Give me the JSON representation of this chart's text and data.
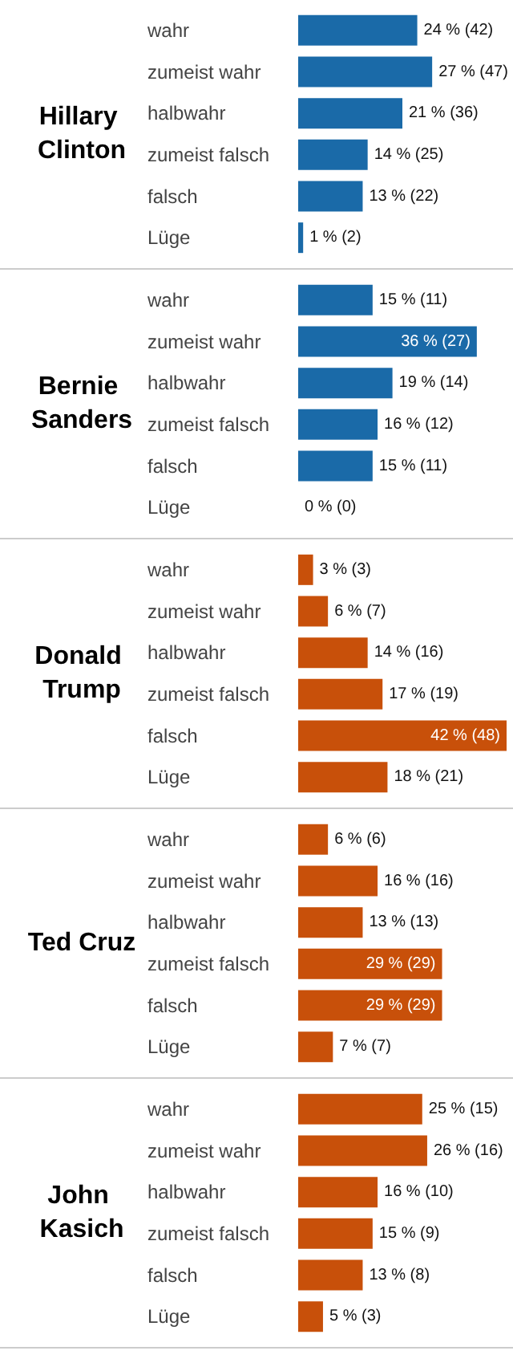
{
  "chart_data": [
    {
      "type": "bar",
      "orientation": "horizontal",
      "title": "Hillary Clinton",
      "categories": [
        "wahr",
        "zumeist wahr",
        "halbwahr",
        "zumeist falsch",
        "falsch",
        "Lüge"
      ],
      "values": [
        24,
        27,
        21,
        14,
        13,
        1
      ],
      "value_labels": [
        "24 % (42)",
        "27 % (47)",
        "21 % (36)",
        "14 % (25)",
        "13 % (22)",
        "1 % (2)"
      ],
      "color": "#1a6aa8"
    },
    {
      "type": "bar",
      "orientation": "horizontal",
      "title": "Bernie Sanders",
      "categories": [
        "wahr",
        "zumeist wahr",
        "halbwahr",
        "zumeist falsch",
        "falsch",
        "Lüge"
      ],
      "values": [
        15,
        36,
        19,
        16,
        15,
        0
      ],
      "value_labels": [
        "15 % (11)",
        "36 % (27)",
        "19 % (14)",
        "16 % (12)",
        "15 % (11)",
        "0 % (0)"
      ],
      "color": "#1a6aa8"
    },
    {
      "type": "bar",
      "orientation": "horizontal",
      "title": "Donald Trump",
      "categories": [
        "wahr",
        "zumeist wahr",
        "halbwahr",
        "zumeist falsch",
        "falsch",
        "Lüge"
      ],
      "values": [
        3,
        6,
        14,
        17,
        42,
        18
      ],
      "value_labels": [
        "3 % (3)",
        "6 % (7)",
        "14 % (16)",
        "17 % (19)",
        "42 % (48)",
        "18 % (21)"
      ],
      "color": "#c8500a"
    },
    {
      "type": "bar",
      "orientation": "horizontal",
      "title": "Ted Cruz",
      "categories": [
        "wahr",
        "zumeist wahr",
        "halbwahr",
        "zumeist falsch",
        "falsch",
        "Lüge"
      ],
      "values": [
        6,
        16,
        13,
        29,
        29,
        7
      ],
      "value_labels": [
        "6 % (6)",
        "16 % (16)",
        "13 % (13)",
        "29 % (29)",
        "29 % (29)",
        "7 % (7)"
      ],
      "color": "#c8500a"
    },
    {
      "type": "bar",
      "orientation": "horizontal",
      "title": "John Kasich",
      "categories": [
        "wahr",
        "zumeist wahr",
        "halbwahr",
        "zumeist falsch",
        "falsch",
        "Lüge"
      ],
      "values": [
        25,
        26,
        16,
        15,
        13,
        5
      ],
      "value_labels": [
        "25 % (15)",
        "26 % (16)",
        "16 % (10)",
        "15 % (9)",
        "13 % (8)",
        "5 % (3)"
      ],
      "color": "#c8500a"
    }
  ]
}
